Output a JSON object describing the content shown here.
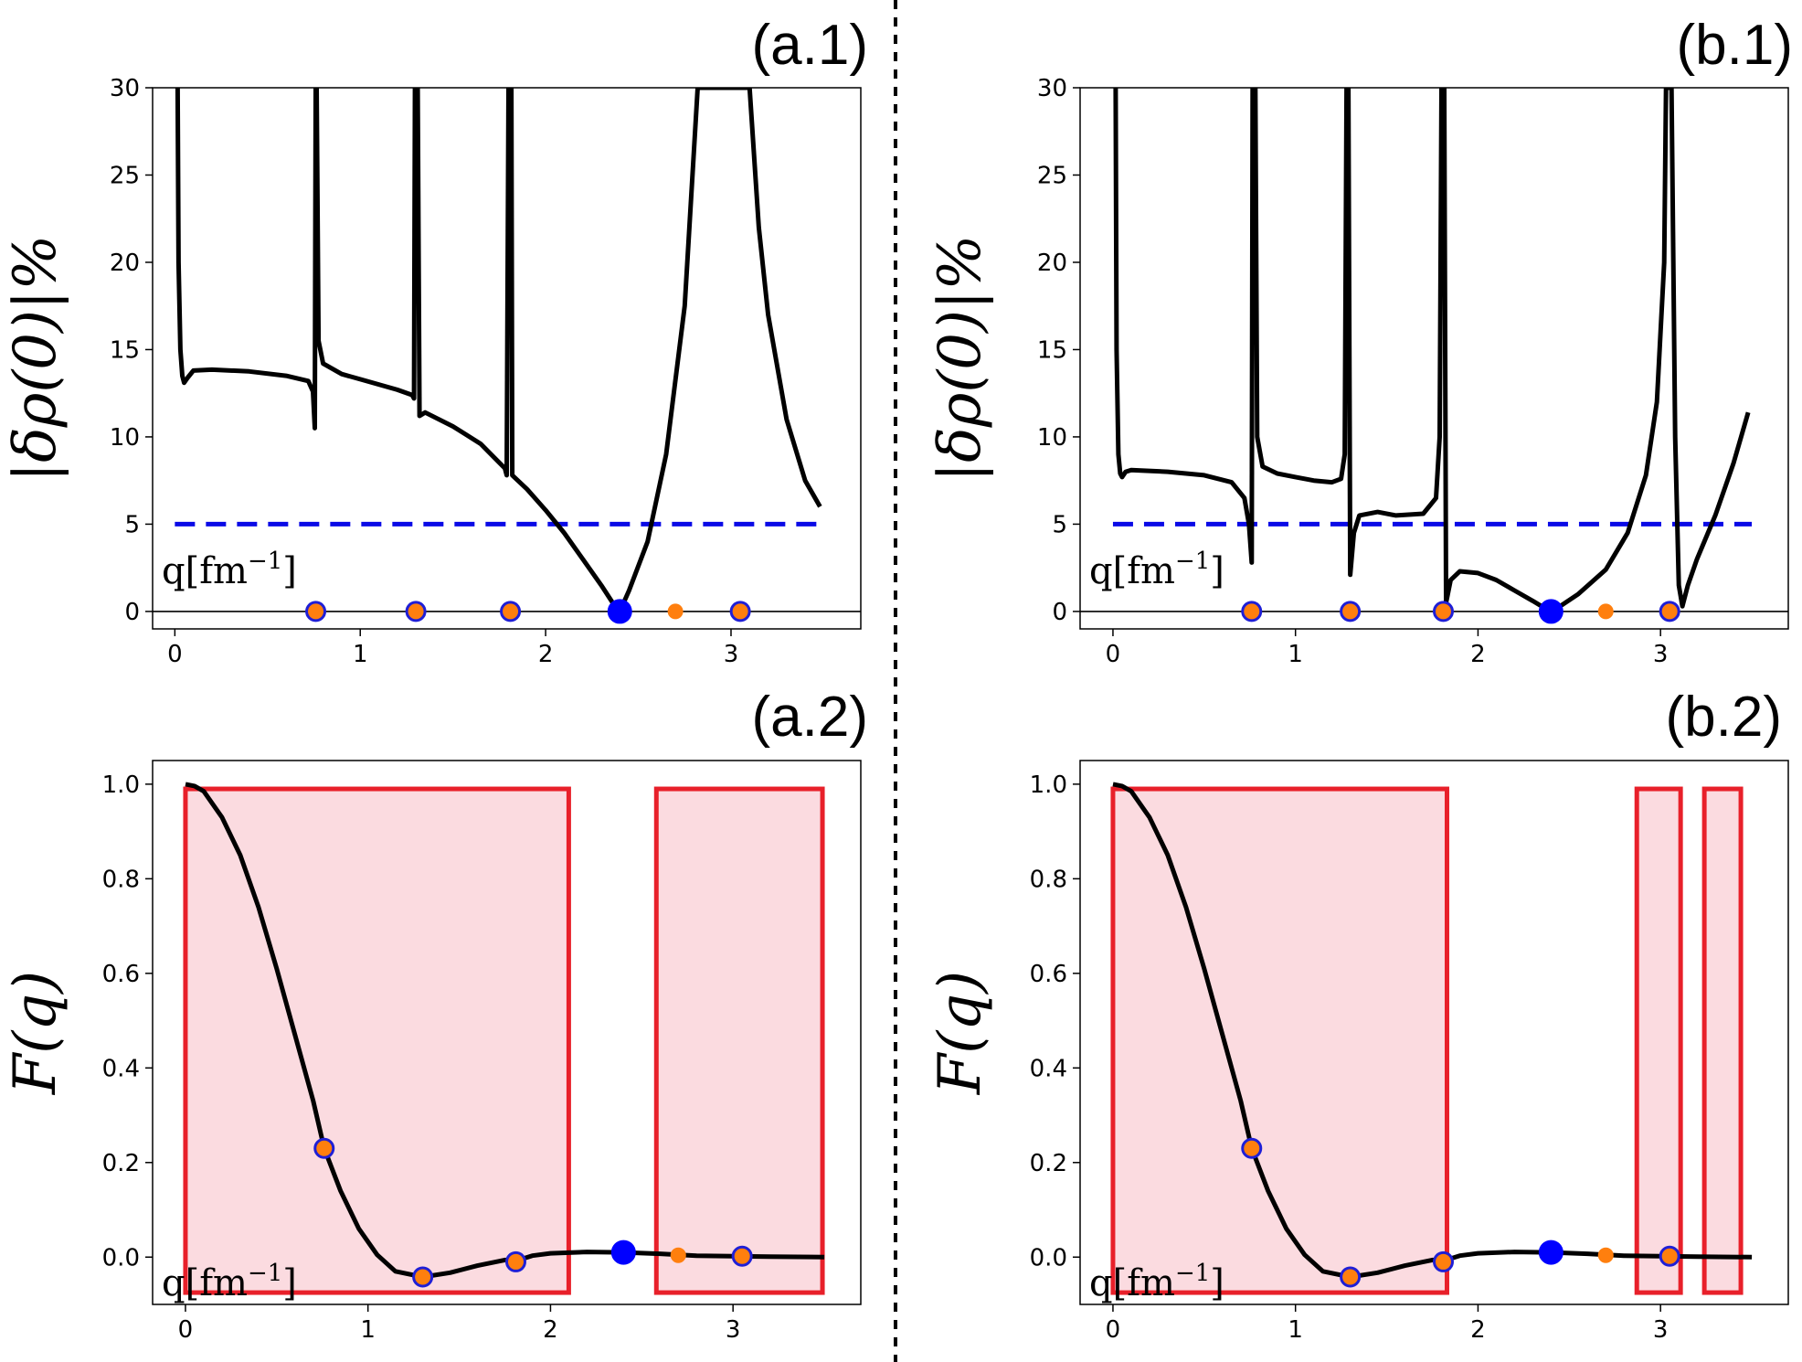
{
  "colors": {
    "curve": "#000000",
    "threshold": "#0a0ae6",
    "marker_blue": "#0000ff",
    "marker_orange": "#ff7f0e",
    "marker_edge": "#1f1fd6",
    "box_edge": "#e8202a",
    "box_fill": "#fbdbe0",
    "axis": "#000000"
  },
  "chart_data": [
    {
      "id": "a1",
      "type": "line",
      "panel_label": "(a.1)",
      "ylabel": "|δρ(0)|%",
      "q_label": "q[fm",
      "q_exp": "−1",
      "q_close": "]",
      "xlim": [
        -0.12,
        3.7
      ],
      "ylim": [
        -1,
        30
      ],
      "xticks": [
        "0",
        "1",
        "2",
        "3"
      ],
      "yticks": [
        "0",
        "5",
        "10",
        "15",
        "20",
        "25",
        "30"
      ],
      "xtick_vals": [
        0,
        1,
        2,
        3
      ],
      "ytick_vals": [
        0,
        5,
        10,
        15,
        20,
        25,
        30
      ],
      "threshold": 5,
      "zero_line": true,
      "curve": [
        [
          0.015,
          30
        ],
        [
          0.02,
          20
        ],
        [
          0.03,
          15
        ],
        [
          0.04,
          13.5
        ],
        [
          0.05,
          13.1
        ],
        [
          0.07,
          13.4
        ],
        [
          0.1,
          13.8
        ],
        [
          0.2,
          13.85
        ],
        [
          0.4,
          13.75
        ],
        [
          0.6,
          13.5
        ],
        [
          0.72,
          13.2
        ],
        [
          0.745,
          12.6
        ],
        [
          0.755,
          10.5
        ],
        [
          0.76,
          30
        ],
        [
          0.765,
          30
        ],
        [
          0.775,
          15.5
        ],
        [
          0.8,
          14.2
        ],
        [
          0.9,
          13.6
        ],
        [
          1.0,
          13.3
        ],
        [
          1.1,
          13.0
        ],
        [
          1.2,
          12.7
        ],
        [
          1.28,
          12.4
        ],
        [
          1.29,
          12.2
        ],
        [
          1.295,
          30
        ],
        [
          1.31,
          30
        ],
        [
          1.32,
          11.2
        ],
        [
          1.35,
          11.4
        ],
        [
          1.5,
          10.6
        ],
        [
          1.65,
          9.6
        ],
        [
          1.78,
          8.2
        ],
        [
          1.79,
          7.8
        ],
        [
          1.8,
          30
        ],
        [
          1.815,
          30
        ],
        [
          1.82,
          7.8
        ],
        [
          1.9,
          7.0
        ],
        [
          2.0,
          5.8
        ],
        [
          2.1,
          4.5
        ],
        [
          2.2,
          3.0
        ],
        [
          2.3,
          1.5
        ],
        [
          2.38,
          0.2
        ],
        [
          2.4,
          0
        ],
        [
          2.45,
          1.2
        ],
        [
          2.55,
          4.0
        ],
        [
          2.65,
          9.0
        ],
        [
          2.75,
          17.5
        ],
        [
          2.82,
          30
        ],
        [
          3.1,
          30
        ],
        [
          3.15,
          22
        ],
        [
          3.2,
          17
        ],
        [
          3.3,
          11
        ],
        [
          3.4,
          7.5
        ],
        [
          3.48,
          6.0
        ]
      ],
      "markers": [
        {
          "q": 0.76,
          "y": 0,
          "color": "orange",
          "size": "large"
        },
        {
          "q": 1.3,
          "y": 0,
          "color": "orange",
          "size": "large"
        },
        {
          "q": 1.81,
          "y": 0,
          "color": "orange",
          "size": "large"
        },
        {
          "q": 2.4,
          "y": 0,
          "color": "blue",
          "size": "large"
        },
        {
          "q": 2.7,
          "y": 0,
          "color": "orange",
          "size": "small"
        },
        {
          "q": 3.05,
          "y": 0,
          "color": "orange",
          "size": "large"
        }
      ],
      "boxes": []
    },
    {
      "id": "b1",
      "type": "line",
      "panel_label": "(b.1)",
      "ylabel": "|δρ(0)|%",
      "q_label": "q[fm",
      "q_exp": "−1",
      "q_close": "]",
      "xlim": [
        -0.18,
        3.7
      ],
      "ylim": [
        -1,
        30
      ],
      "xticks": [
        "0",
        "1",
        "2",
        "3"
      ],
      "yticks": [
        "0",
        "5",
        "10",
        "15",
        "20",
        "25",
        "30"
      ],
      "xtick_vals": [
        0,
        1,
        2,
        3
      ],
      "ytick_vals": [
        0,
        5,
        10,
        15,
        20,
        25,
        30
      ],
      "threshold": 5,
      "zero_line": true,
      "curve": [
        [
          0.015,
          30
        ],
        [
          0.02,
          15
        ],
        [
          0.03,
          9
        ],
        [
          0.04,
          7.9
        ],
        [
          0.05,
          7.7
        ],
        [
          0.07,
          8.0
        ],
        [
          0.1,
          8.1
        ],
        [
          0.3,
          8.0
        ],
        [
          0.5,
          7.8
        ],
        [
          0.65,
          7.4
        ],
        [
          0.72,
          6.5
        ],
        [
          0.745,
          5.0
        ],
        [
          0.76,
          2.8
        ],
        [
          0.765,
          30
        ],
        [
          0.78,
          30
        ],
        [
          0.79,
          10
        ],
        [
          0.82,
          8.3
        ],
        [
          0.9,
          7.9
        ],
        [
          1.0,
          7.7
        ],
        [
          1.1,
          7.5
        ],
        [
          1.2,
          7.4
        ],
        [
          1.25,
          7.6
        ],
        [
          1.27,
          9
        ],
        [
          1.28,
          30
        ],
        [
          1.29,
          30
        ],
        [
          1.3,
          2.1
        ],
        [
          1.32,
          4.5
        ],
        [
          1.35,
          5.5
        ],
        [
          1.45,
          5.7
        ],
        [
          1.55,
          5.5
        ],
        [
          1.7,
          5.6
        ],
        [
          1.77,
          6.5
        ],
        [
          1.79,
          10
        ],
        [
          1.8,
          30
        ],
        [
          1.815,
          30
        ],
        [
          1.825,
          0.5
        ],
        [
          1.85,
          1.8
        ],
        [
          1.9,
          2.3
        ],
        [
          2.0,
          2.2
        ],
        [
          2.1,
          1.8
        ],
        [
          2.2,
          1.2
        ],
        [
          2.3,
          0.6
        ],
        [
          2.38,
          0.1
        ],
        [
          2.4,
          0
        ],
        [
          2.45,
          0.3
        ],
        [
          2.55,
          1.0
        ],
        [
          2.7,
          2.4
        ],
        [
          2.82,
          4.5
        ],
        [
          2.92,
          7.8
        ],
        [
          2.98,
          12
        ],
        [
          3.02,
          20
        ],
        [
          3.03,
          30
        ],
        [
          3.06,
          30
        ],
        [
          3.08,
          10
        ],
        [
          3.1,
          1.5
        ],
        [
          3.12,
          0.3
        ],
        [
          3.15,
          1.5
        ],
        [
          3.2,
          3.0
        ],
        [
          3.3,
          5.5
        ],
        [
          3.4,
          8.5
        ],
        [
          3.48,
          11.4
        ]
      ],
      "markers": [
        {
          "q": 0.76,
          "y": 0,
          "color": "orange",
          "size": "large"
        },
        {
          "q": 1.3,
          "y": 0,
          "color": "orange",
          "size": "large"
        },
        {
          "q": 1.81,
          "y": 0,
          "color": "orange",
          "size": "large"
        },
        {
          "q": 2.4,
          "y": 0,
          "color": "blue",
          "size": "large"
        },
        {
          "q": 2.7,
          "y": 0,
          "color": "orange",
          "size": "small"
        },
        {
          "q": 3.05,
          "y": 0,
          "color": "orange",
          "size": "large"
        }
      ],
      "boxes": []
    },
    {
      "id": "a2",
      "type": "line",
      "panel_label": "(a.2)",
      "ylabel": "F(q)",
      "q_label": "q[fm",
      "q_exp": "−1",
      "q_close": "]",
      "xlim": [
        -0.18,
        3.7
      ],
      "ylim": [
        -0.1,
        1.05
      ],
      "xticks": [
        "0",
        "1",
        "2",
        "3"
      ],
      "yticks": [
        "0.0",
        "0.2",
        "0.4",
        "0.6",
        "0.8",
        "1.0"
      ],
      "xtick_vals": [
        0,
        1,
        2,
        3
      ],
      "ytick_vals": [
        0.0,
        0.2,
        0.4,
        0.6,
        0.8,
        1.0
      ],
      "threshold": null,
      "zero_line": false,
      "curve": [
        [
          0,
          1.0
        ],
        [
          0.05,
          0.996
        ],
        [
          0.1,
          0.985
        ],
        [
          0.2,
          0.93
        ],
        [
          0.3,
          0.85
        ],
        [
          0.4,
          0.74
        ],
        [
          0.5,
          0.61
        ],
        [
          0.6,
          0.47
        ],
        [
          0.7,
          0.33
        ],
        [
          0.76,
          0.23
        ],
        [
          0.85,
          0.14
        ],
        [
          0.95,
          0.06
        ],
        [
          1.05,
          0.005
        ],
        [
          1.15,
          -0.03
        ],
        [
          1.3,
          -0.042
        ],
        [
          1.45,
          -0.033
        ],
        [
          1.6,
          -0.018
        ],
        [
          1.75,
          -0.006
        ],
        [
          1.81,
          -0.008
        ],
        [
          1.9,
          0.003
        ],
        [
          2.0,
          0.008
        ],
        [
          2.2,
          0.011
        ],
        [
          2.4,
          0.01
        ],
        [
          2.6,
          0.007
        ],
        [
          2.8,
          0.003
        ],
        [
          3.0,
          0.002
        ],
        [
          3.2,
          0.001
        ],
        [
          3.5,
          0.0
        ]
      ],
      "markers": [
        {
          "q": 0.76,
          "y": 0.23,
          "color": "orange",
          "size": "large"
        },
        {
          "q": 1.3,
          "y": -0.042,
          "color": "orange",
          "size": "large"
        },
        {
          "q": 1.81,
          "y": -0.01,
          "color": "orange",
          "size": "large"
        },
        {
          "q": 2.4,
          "y": 0.01,
          "color": "blue",
          "size": "large"
        },
        {
          "q": 2.7,
          "y": 0.004,
          "color": "orange",
          "size": "small"
        },
        {
          "q": 3.05,
          "y": 0.002,
          "color": "orange",
          "size": "large"
        }
      ],
      "boxes": [
        [
          0.0,
          2.1,
          -0.075,
          0.99
        ],
        [
          2.58,
          3.49,
          -0.075,
          0.99
        ]
      ]
    },
    {
      "id": "b2",
      "type": "line",
      "panel_label": "(b.2)",
      "ylabel": "F(q)",
      "q_label": "q[fm",
      "q_exp": "−1",
      "q_close": "]",
      "xlim": [
        -0.18,
        3.7
      ],
      "ylim": [
        -0.1,
        1.05
      ],
      "xticks": [
        "0",
        "1",
        "2",
        "3"
      ],
      "yticks": [
        "0.0",
        "0.2",
        "0.4",
        "0.6",
        "0.8",
        "1.0"
      ],
      "xtick_vals": [
        0,
        1,
        2,
        3
      ],
      "ytick_vals": [
        0.0,
        0.2,
        0.4,
        0.6,
        0.8,
        1.0
      ],
      "threshold": null,
      "zero_line": false,
      "curve": [
        [
          0,
          1.0
        ],
        [
          0.05,
          0.996
        ],
        [
          0.1,
          0.985
        ],
        [
          0.2,
          0.93
        ],
        [
          0.3,
          0.85
        ],
        [
          0.4,
          0.74
        ],
        [
          0.5,
          0.61
        ],
        [
          0.6,
          0.47
        ],
        [
          0.7,
          0.33
        ],
        [
          0.76,
          0.23
        ],
        [
          0.85,
          0.14
        ],
        [
          0.95,
          0.06
        ],
        [
          1.05,
          0.005
        ],
        [
          1.15,
          -0.03
        ],
        [
          1.3,
          -0.042
        ],
        [
          1.45,
          -0.033
        ],
        [
          1.6,
          -0.018
        ],
        [
          1.75,
          -0.006
        ],
        [
          1.81,
          -0.008
        ],
        [
          1.9,
          0.003
        ],
        [
          2.0,
          0.008
        ],
        [
          2.2,
          0.011
        ],
        [
          2.4,
          0.01
        ],
        [
          2.6,
          0.007
        ],
        [
          2.8,
          0.003
        ],
        [
          3.0,
          0.002
        ],
        [
          3.2,
          0.001
        ],
        [
          3.5,
          0.0
        ]
      ],
      "markers": [
        {
          "q": 0.76,
          "y": 0.23,
          "color": "orange",
          "size": "large"
        },
        {
          "q": 1.3,
          "y": -0.042,
          "color": "orange",
          "size": "large"
        },
        {
          "q": 1.81,
          "y": -0.01,
          "color": "orange",
          "size": "large"
        },
        {
          "q": 2.4,
          "y": 0.01,
          "color": "blue",
          "size": "large"
        },
        {
          "q": 2.7,
          "y": 0.004,
          "color": "orange",
          "size": "small"
        },
        {
          "q": 3.05,
          "y": 0.002,
          "color": "orange",
          "size": "large"
        }
      ],
      "boxes": [
        [
          0.0,
          1.83,
          -0.075,
          0.99
        ],
        [
          2.87,
          3.11,
          -0.075,
          0.99
        ],
        [
          3.24,
          3.44,
          -0.075,
          0.99
        ]
      ]
    }
  ]
}
